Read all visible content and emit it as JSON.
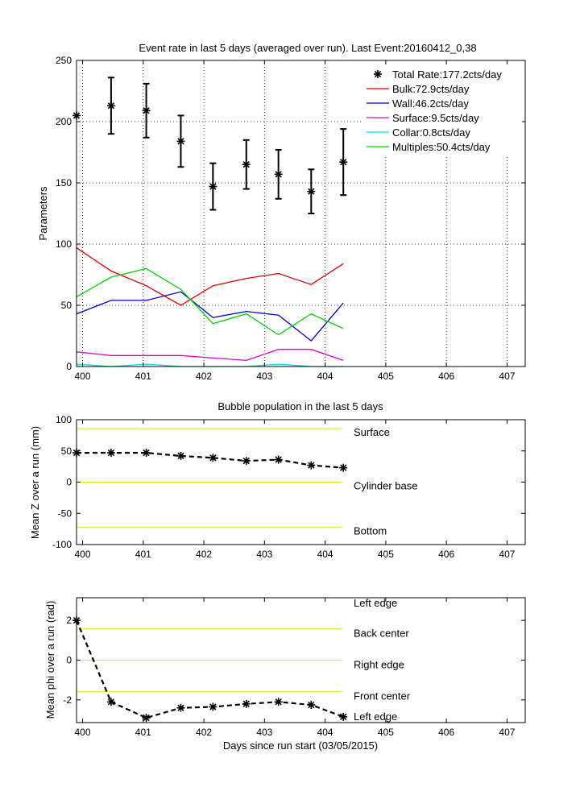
{
  "chart_data": [
    {
      "type": "scatter",
      "title": "Event rate in last 5 days (averaged over run). Last Event:20160412_0,38",
      "xlabel": "",
      "ylabel": "Parameters",
      "xlim": [
        399.9,
        407.3
      ],
      "ylim": [
        0,
        250
      ],
      "xticks": [
        "400",
        "401",
        "402",
        "403",
        "404",
        "405",
        "406",
        "407"
      ],
      "yticks": [
        "0",
        "50",
        "100",
        "150",
        "200",
        "250"
      ],
      "grid": true,
      "legend_position": "top-right",
      "x": [
        399.9,
        400.47,
        401.05,
        401.62,
        402.15,
        402.7,
        403.23,
        403.77,
        404.3
      ],
      "total": {
        "name": "Total Rate:177.2cts/day",
        "color": "#000000",
        "values": [
          205,
          213,
          209,
          184,
          147,
          165,
          157,
          143,
          167
        ],
        "errors": [
          0,
          23,
          22,
          21,
          19,
          20,
          20,
          18,
          27
        ]
      },
      "series": [
        {
          "name": "Bulk:72.9cts/day",
          "color": "#e00000",
          "values": [
            97,
            78,
            66,
            50,
            66,
            72,
            76,
            67,
            84
          ]
        },
        {
          "name": "Wall:46.2cts/day",
          "color": "#0000c8",
          "values": [
            43,
            54,
            54,
            61,
            40,
            45,
            42,
            21,
            52
          ]
        },
        {
          "name": "Surface:9.5cts/day",
          "color": "#e000e0",
          "values": [
            12,
            9,
            9,
            9,
            7,
            5,
            14,
            14,
            5
          ]
        },
        {
          "name": "Collar:0.8cts/day",
          "color": "#00e0e0",
          "values": [
            2,
            0,
            2,
            0,
            0,
            0,
            2,
            0,
            0
          ]
        },
        {
          "name": "Multiples:50.4cts/day",
          "color": "#00d000",
          "values": [
            57,
            73,
            80,
            63,
            35,
            43,
            26,
            43,
            31
          ]
        }
      ]
    },
    {
      "type": "line",
      "title": "Bubble population in the last 5 days",
      "xlabel": "",
      "ylabel": "Mean Z over a run (mm)",
      "xlim": [
        399.9,
        407.3
      ],
      "ylim": [
        -100,
        100
      ],
      "xticks": [
        "400",
        "401",
        "402",
        "403",
        "404",
        "405",
        "406",
        "407"
      ],
      "yticks": [
        "100",
        "50",
        "0",
        "-50",
        "-100"
      ],
      "grid": false,
      "x": [
        399.9,
        400.47,
        401.05,
        401.62,
        402.15,
        402.7,
        403.23,
        403.77,
        404.3
      ],
      "values": [
        47,
        47,
        47,
        42,
        39,
        34,
        36,
        27,
        23
      ],
      "line_color": "#000000",
      "reference_color": "#e8e800",
      "reference_lines": [
        {
          "label": "Surface",
          "value": 86
        },
        {
          "label": "Cylinder base",
          "value": 0
        },
        {
          "label": "Bottom",
          "value": -72
        }
      ]
    },
    {
      "type": "line",
      "title": "",
      "xlabel": "Days since run start (03/05/2015)",
      "ylabel": "Mean phi over a run (rad)",
      "xlim": [
        399.9,
        407.3
      ],
      "ylim": [
        -3.14,
        3.14
      ],
      "xticks": [
        "400",
        "401",
        "402",
        "403",
        "404",
        "405",
        "406",
        "407"
      ],
      "yticks": [
        "2",
        "0",
        "-2"
      ],
      "grid": false,
      "x": [
        399.9,
        400.47,
        401.05,
        401.62,
        402.15,
        402.7,
        403.23,
        403.77,
        404.3
      ],
      "values": [
        2.0,
        -2.1,
        -2.9,
        -2.4,
        -2.35,
        -2.2,
        -2.1,
        -2.25,
        -2.85
      ],
      "line_color": "#000000",
      "reference_color": "#e8e800",
      "reference_lines": [
        {
          "label": "Left edge",
          "value": 3.14
        },
        {
          "label": "Back center",
          "value": 1.5708
        },
        {
          "label": "Right edge",
          "value": 0
        },
        {
          "label": "Front center",
          "value": -1.5708
        },
        {
          "label": "Left edge",
          "value": -3.14
        }
      ]
    }
  ]
}
